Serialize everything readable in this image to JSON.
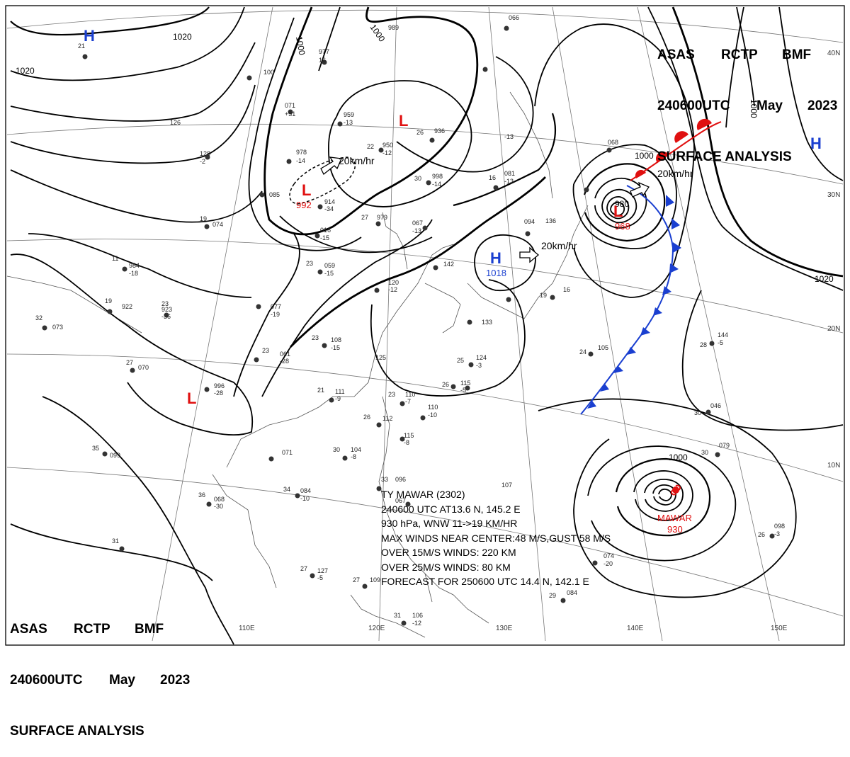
{
  "header_top_right": {
    "line1": [
      "ASAS",
      "RCTP",
      "BMF"
    ],
    "line2": [
      "240600UTC",
      "May",
      "2023"
    ],
    "line3": "SURFACE ANALYSIS"
  },
  "header_bottom_left": {
    "line1": [
      "ASAS",
      "RCTP",
      "BMF"
    ],
    "line2": [
      "240600UTC",
      "May",
      "2023"
    ],
    "line3": "SURFACE ANALYSIS"
  },
  "longitude_labels": [
    "110E",
    "120E",
    "130E",
    "140E",
    "150E"
  ],
  "latitude_labels": [
    "40N",
    "30N",
    "20N",
    "10N"
  ],
  "pressure_systems": [
    {
      "type": "H",
      "name": "high-nw",
      "value": ""
    },
    {
      "type": "L",
      "name": "low-mongolia",
      "value": ""
    },
    {
      "type": "L",
      "name": "low-north-china",
      "value": "992"
    },
    {
      "type": "H",
      "name": "high-east-china-sea",
      "value": "1018"
    },
    {
      "type": "L",
      "name": "low-japan-east",
      "value": "968"
    },
    {
      "type": "H",
      "name": "high-pacific",
      "value": ""
    },
    {
      "type": "L",
      "name": "low-southwest-china",
      "value": ""
    }
  ],
  "typhoon_marker": {
    "name": "MAWAR",
    "pressure": "930"
  },
  "isobar_labels": [
    "1020",
    "1000",
    "1000",
    "1000",
    "1000",
    "980",
    "1020",
    "1020",
    "1000"
  ],
  "motion_labels": [
    "20km/hr",
    "20km/hr",
    "20km/hr"
  ],
  "typhoon_info": {
    "line1": "TY  MAWAR  (2302)",
    "line2": "240600 UTC  AT13.6 N, 145.2 E",
    "line3": "930 hPa, WNW  11->19 KM/HR",
    "line4": "MAX WINDS NEAR CENTER:48 M/S,GUST 58 M/S",
    "line5": "OVER 15M/S WINDS: 220 KM",
    "line6": "OVER 25M/S WINDS: 80 KM",
    "line7": "FORECAST FOR 250600 UTC 14.4 N, 142.1 E"
  },
  "stations": [
    {
      "t": "21",
      "p": "",
      "w": ""
    },
    {
      "t": "",
      "p": "100",
      "w": ""
    },
    {
      "t": "",
      "p": "071",
      "w": "+31"
    },
    {
      "t": "",
      "p": "977",
      "w": "16"
    },
    {
      "t": "",
      "p": "959",
      "w": "-13"
    },
    {
      "t": "26",
      "p": "936",
      "w": ""
    },
    {
      "t": "",
      "p": "989",
      "w": ""
    },
    {
      "t": "",
      "p": "066",
      "w": ""
    },
    {
      "t": "",
      "p": "978",
      "w": "-14"
    },
    {
      "t": "",
      "p": "085",
      "w": ""
    },
    {
      "t": "22",
      "p": "950",
      "w": "-12"
    },
    {
      "t": "",
      "p": "126",
      "w": ""
    },
    {
      "t": "",
      "p": "128",
      "w": "-2"
    },
    {
      "t": "",
      "p": "914",
      "w": "-34"
    },
    {
      "t": "",
      "p": "016",
      "w": "-15"
    },
    {
      "t": "19",
      "p": "074",
      "w": ""
    },
    {
      "t": "11",
      "p": "984",
      "w": "-18"
    },
    {
      "t": "23",
      "p": "059",
      "w": "-15"
    },
    {
      "t": "",
      "p": "077",
      "w": "-19"
    },
    {
      "t": "19",
      "p": "922",
      "w": ""
    },
    {
      "t": "23",
      "p": "923",
      "w": "-36"
    },
    {
      "t": "32",
      "p": "073",
      "w": ""
    },
    {
      "t": "27",
      "p": "070",
      "w": ""
    },
    {
      "t": "23",
      "p": "061",
      "w": "-28"
    },
    {
      "t": "",
      "p": "996",
      "w": "-28"
    },
    {
      "t": "23",
      "p": "108",
      "w": "-15"
    },
    {
      "t": "21",
      "p": "111",
      "w": "-9"
    },
    {
      "t": "23",
      "p": "110",
      "w": "-7"
    },
    {
      "t": "",
      "p": "110",
      "w": "-10"
    },
    {
      "t": "26",
      "p": "112",
      "w": ""
    },
    {
      "t": "",
      "p": "115",
      "w": "-8"
    },
    {
      "t": "",
      "p": "071",
      "w": ""
    },
    {
      "t": "30",
      "p": "104",
      "w": "-8"
    },
    {
      "t": "35",
      "p": "099",
      "w": ""
    },
    {
      "t": "36",
      "p": "068",
      "w": "-30"
    },
    {
      "t": "34",
      "p": "084",
      "w": "-10"
    },
    {
      "t": "31",
      "p": "",
      "w": ""
    },
    {
      "t": "27",
      "p": "127",
      "w": "-5"
    },
    {
      "t": "27",
      "p": "109",
      "w": ""
    },
    {
      "t": "31",
      "p": "106",
      "w": "-12"
    },
    {
      "t": "29",
      "p": "084",
      "w": ""
    },
    {
      "t": "",
      "p": "074",
      "w": "-20"
    },
    {
      "t": "26",
      "p": "098",
      "w": "-3"
    },
    {
      "t": "30",
      "p": "079",
      "w": ""
    },
    {
      "t": "30",
      "p": "046",
      "w": ""
    },
    {
      "t": "28",
      "p": "144",
      "w": "-5"
    },
    {
      "t": "24",
      "p": "105",
      "w": ""
    },
    {
      "t": "25",
      "p": "124",
      "w": "-3"
    },
    {
      "t": "",
      "p": "125",
      "w": ""
    },
    {
      "t": "26",
      "p": "115",
      "w": "-5"
    },
    {
      "t": "",
      "p": "133",
      "w": ""
    },
    {
      "t": "",
      "p": "120",
      "w": "-12"
    },
    {
      "t": "",
      "p": "142",
      "w": ""
    },
    {
      "t": "",
      "p": "067",
      "w": "-13"
    },
    {
      "t": "27",
      "p": "979",
      "w": ""
    },
    {
      "t": "30",
      "p": "998",
      "w": "-14"
    },
    {
      "t": "16",
      "p": "081",
      "w": "-13"
    },
    {
      "t": "",
      "p": "068",
      "w": ""
    },
    {
      "t": "",
      "p": "094",
      "w": ""
    },
    {
      "t": "",
      "p": "",
      "w": "-13"
    },
    {
      "t": "",
      "p": "136",
      "w": ""
    },
    {
      "t": "16",
      "p": "",
      "w": ""
    },
    {
      "t": "19",
      "p": "",
      "w": ""
    },
    {
      "t": "",
      "p": "107",
      "w": ""
    },
    {
      "t": "33",
      "p": "096",
      "w": ""
    },
    {
      "t": "",
      "p": "067",
      "w": ""
    }
  ]
}
